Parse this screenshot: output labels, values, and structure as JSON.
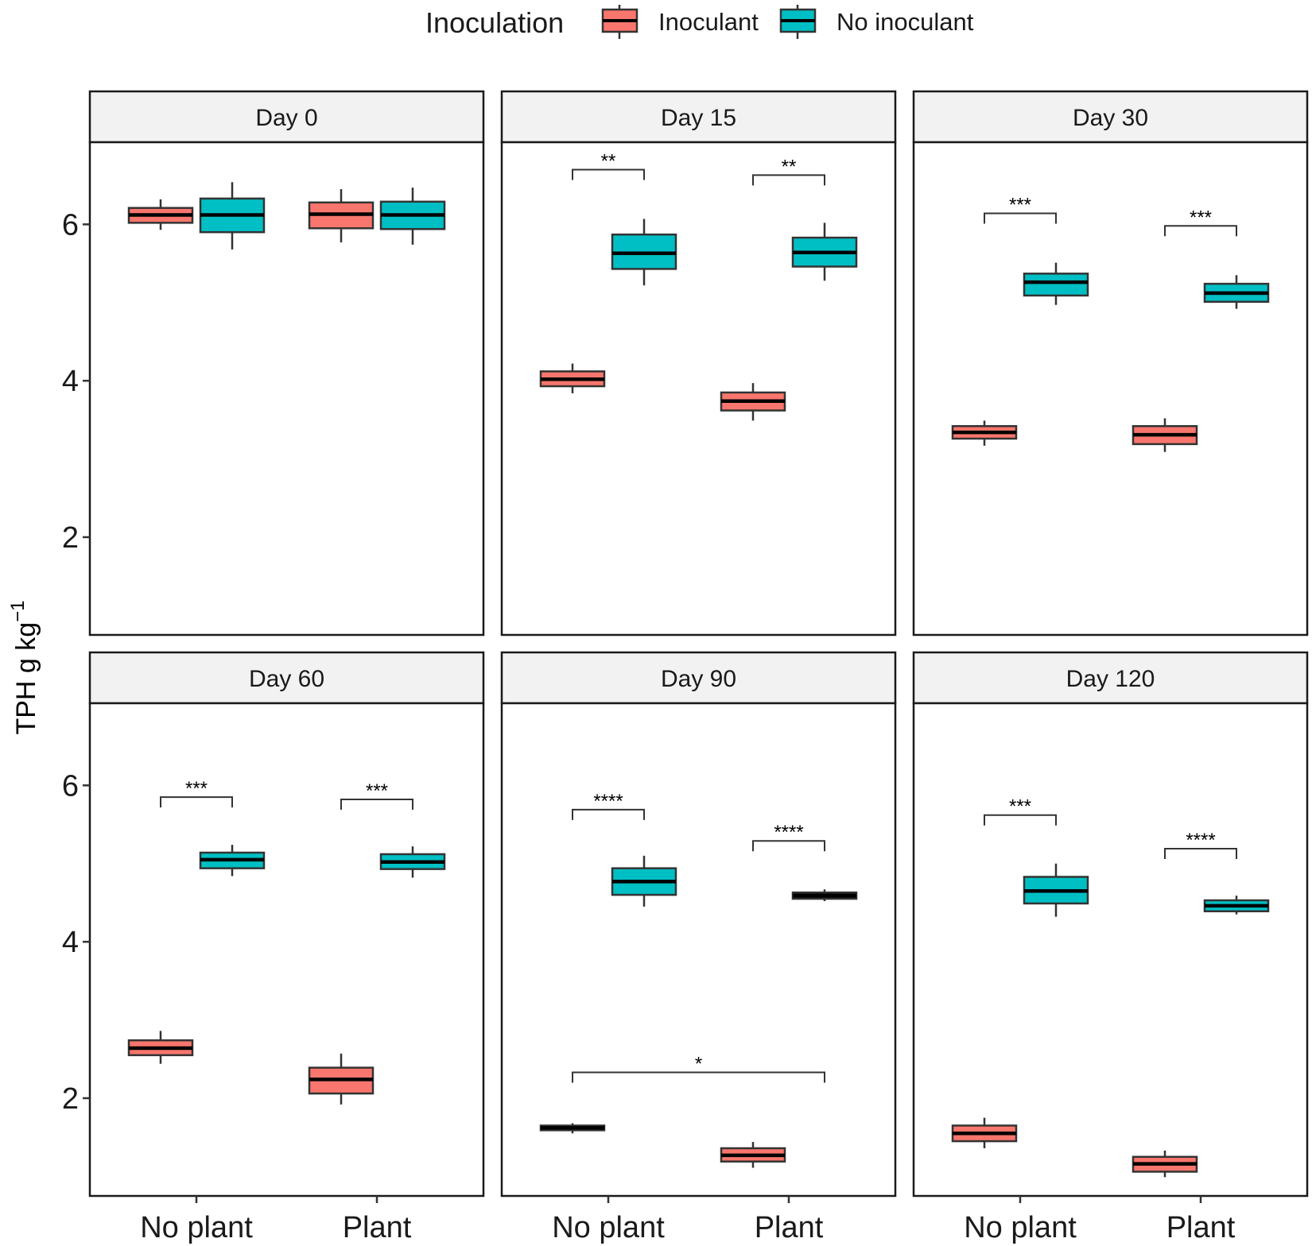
{
  "chart_data": {
    "type": "boxplot",
    "layout": "faceted 2x3",
    "legend": {
      "title": "Inoculation",
      "position": "top",
      "entries": [
        {
          "name": "Inoculant",
          "color": "#F8766D"
        },
        {
          "name": "No inoculant",
          "color": "#00BFC4"
        }
      ]
    },
    "ylabel": {
      "base": "TPH g kg",
      "superscript": "−1"
    },
    "ylim": [
      0.75,
      7.05
    ],
    "yticks": [
      2,
      4,
      6
    ],
    "categories": [
      "No plant",
      "Plant"
    ],
    "facets": [
      {
        "title": "Day 0",
        "boxes": [
          {
            "category": "No plant",
            "group": "Inoculant",
            "min": 5.93,
            "q1": 6.02,
            "median": 6.12,
            "q3": 6.21,
            "max": 6.32
          },
          {
            "category": "No plant",
            "group": "No inoculant",
            "min": 5.68,
            "q1": 5.9,
            "median": 6.12,
            "q3": 6.33,
            "max": 6.54
          },
          {
            "category": "Plant",
            "group": "Inoculant",
            "min": 5.77,
            "q1": 5.95,
            "median": 6.13,
            "q3": 6.28,
            "max": 6.45
          },
          {
            "category": "Plant",
            "group": "No inoculant",
            "min": 5.74,
            "q1": 5.94,
            "median": 6.12,
            "q3": 6.29,
            "max": 6.47
          }
        ],
        "annotations": []
      },
      {
        "title": "Day 15",
        "boxes": [
          {
            "category": "No plant",
            "group": "Inoculant",
            "min": 3.84,
            "q1": 3.93,
            "median": 4.02,
            "q3": 4.12,
            "max": 4.22
          },
          {
            "category": "No plant",
            "group": "No inoculant",
            "min": 5.22,
            "q1": 5.43,
            "median": 5.63,
            "q3": 5.87,
            "max": 6.07
          },
          {
            "category": "Plant",
            "group": "Inoculant",
            "min": 3.49,
            "q1": 3.62,
            "median": 3.74,
            "q3": 3.85,
            "max": 3.97
          },
          {
            "category": "Plant",
            "group": "No inoculant",
            "min": 5.28,
            "q1": 5.46,
            "median": 5.64,
            "q3": 5.83,
            "max": 6.02
          }
        ],
        "annotations": [
          {
            "label": "**",
            "from": "No plant",
            "to": "No plant",
            "y": 6.7
          },
          {
            "label": "**",
            "from": "Plant",
            "to": "Plant",
            "y": 6.63
          }
        ]
      },
      {
        "title": "Day 30",
        "boxes": [
          {
            "category": "No plant",
            "group": "Inoculant",
            "min": 3.17,
            "q1": 3.26,
            "median": 3.34,
            "q3": 3.42,
            "max": 3.49
          },
          {
            "category": "No plant",
            "group": "No inoculant",
            "min": 4.97,
            "q1": 5.09,
            "median": 5.26,
            "q3": 5.37,
            "max": 5.51
          },
          {
            "category": "Plant",
            "group": "Inoculant",
            "min": 3.09,
            "q1": 3.19,
            "median": 3.31,
            "q3": 3.42,
            "max": 3.52
          },
          {
            "category": "Plant",
            "group": "No inoculant",
            "min": 4.92,
            "q1": 5.01,
            "median": 5.12,
            "q3": 5.24,
            "max": 5.35
          }
        ],
        "annotations": [
          {
            "label": "***",
            "from": "No plant",
            "to": "No plant",
            "y": 6.14
          },
          {
            "label": "***",
            "from": "Plant",
            "to": "Plant",
            "y": 5.98
          }
        ]
      },
      {
        "title": "Day 60",
        "boxes": [
          {
            "category": "No plant",
            "group": "Inoculant",
            "min": 2.44,
            "q1": 2.55,
            "median": 2.64,
            "q3": 2.74,
            "max": 2.86
          },
          {
            "category": "No plant",
            "group": "No inoculant",
            "min": 4.84,
            "q1": 4.94,
            "median": 5.05,
            "q3": 5.14,
            "max": 5.24
          },
          {
            "category": "Plant",
            "group": "Inoculant",
            "min": 1.92,
            "q1": 2.06,
            "median": 2.24,
            "q3": 2.39,
            "max": 2.57
          },
          {
            "category": "Plant",
            "group": "No inoculant",
            "min": 4.82,
            "q1": 4.93,
            "median": 5.02,
            "q3": 5.12,
            "max": 5.22
          }
        ],
        "annotations": [
          {
            "label": "***",
            "from": "No plant",
            "to": "No plant",
            "y": 5.85
          },
          {
            "label": "***",
            "from": "Plant",
            "to": "Plant",
            "y": 5.82
          }
        ]
      },
      {
        "title": "Day 90",
        "boxes": [
          {
            "category": "No plant",
            "group": "Inoculant",
            "min": 1.55,
            "q1": 1.59,
            "median": 1.62,
            "q3": 1.65,
            "max": 1.68,
            "collapsed": true
          },
          {
            "category": "No plant",
            "group": "No inoculant",
            "min": 4.45,
            "q1": 4.6,
            "median": 4.77,
            "q3": 4.94,
            "max": 5.1
          },
          {
            "category": "Plant",
            "group": "Inoculant",
            "min": 1.11,
            "q1": 1.19,
            "median": 1.27,
            "q3": 1.36,
            "max": 1.44
          },
          {
            "category": "Plant",
            "group": "No inoculant",
            "min": 4.52,
            "q1": 4.55,
            "median": 4.59,
            "q3": 4.63,
            "max": 4.67,
            "collapsed": true
          }
        ],
        "annotations": [
          {
            "label": "****",
            "from": "No plant",
            "to": "No plant",
            "y": 5.69
          },
          {
            "label": "****",
            "from": "Plant",
            "to": "Plant",
            "y": 5.29
          },
          {
            "label": "*",
            "from": "No plant",
            "to": "Plant",
            "y": 2.33
          }
        ]
      },
      {
        "title": "Day 120",
        "boxes": [
          {
            "category": "No plant",
            "group": "Inoculant",
            "min": 1.36,
            "q1": 1.45,
            "median": 1.55,
            "q3": 1.65,
            "max": 1.75
          },
          {
            "category": "No plant",
            "group": "No inoculant",
            "min": 4.32,
            "q1": 4.49,
            "median": 4.65,
            "q3": 4.83,
            "max": 5.0
          },
          {
            "category": "Plant",
            "group": "Inoculant",
            "min": 0.99,
            "q1": 1.06,
            "median": 1.16,
            "q3": 1.25,
            "max": 1.33
          },
          {
            "category": "Plant",
            "group": "No inoculant",
            "min": 4.35,
            "q1": 4.39,
            "median": 4.46,
            "q3": 4.53,
            "max": 4.59
          }
        ],
        "annotations": [
          {
            "label": "***",
            "from": "No plant",
            "to": "No plant",
            "y": 5.62
          },
          {
            "label": "****",
            "from": "Plant",
            "to": "Plant",
            "y": 5.19
          }
        ]
      }
    ]
  }
}
